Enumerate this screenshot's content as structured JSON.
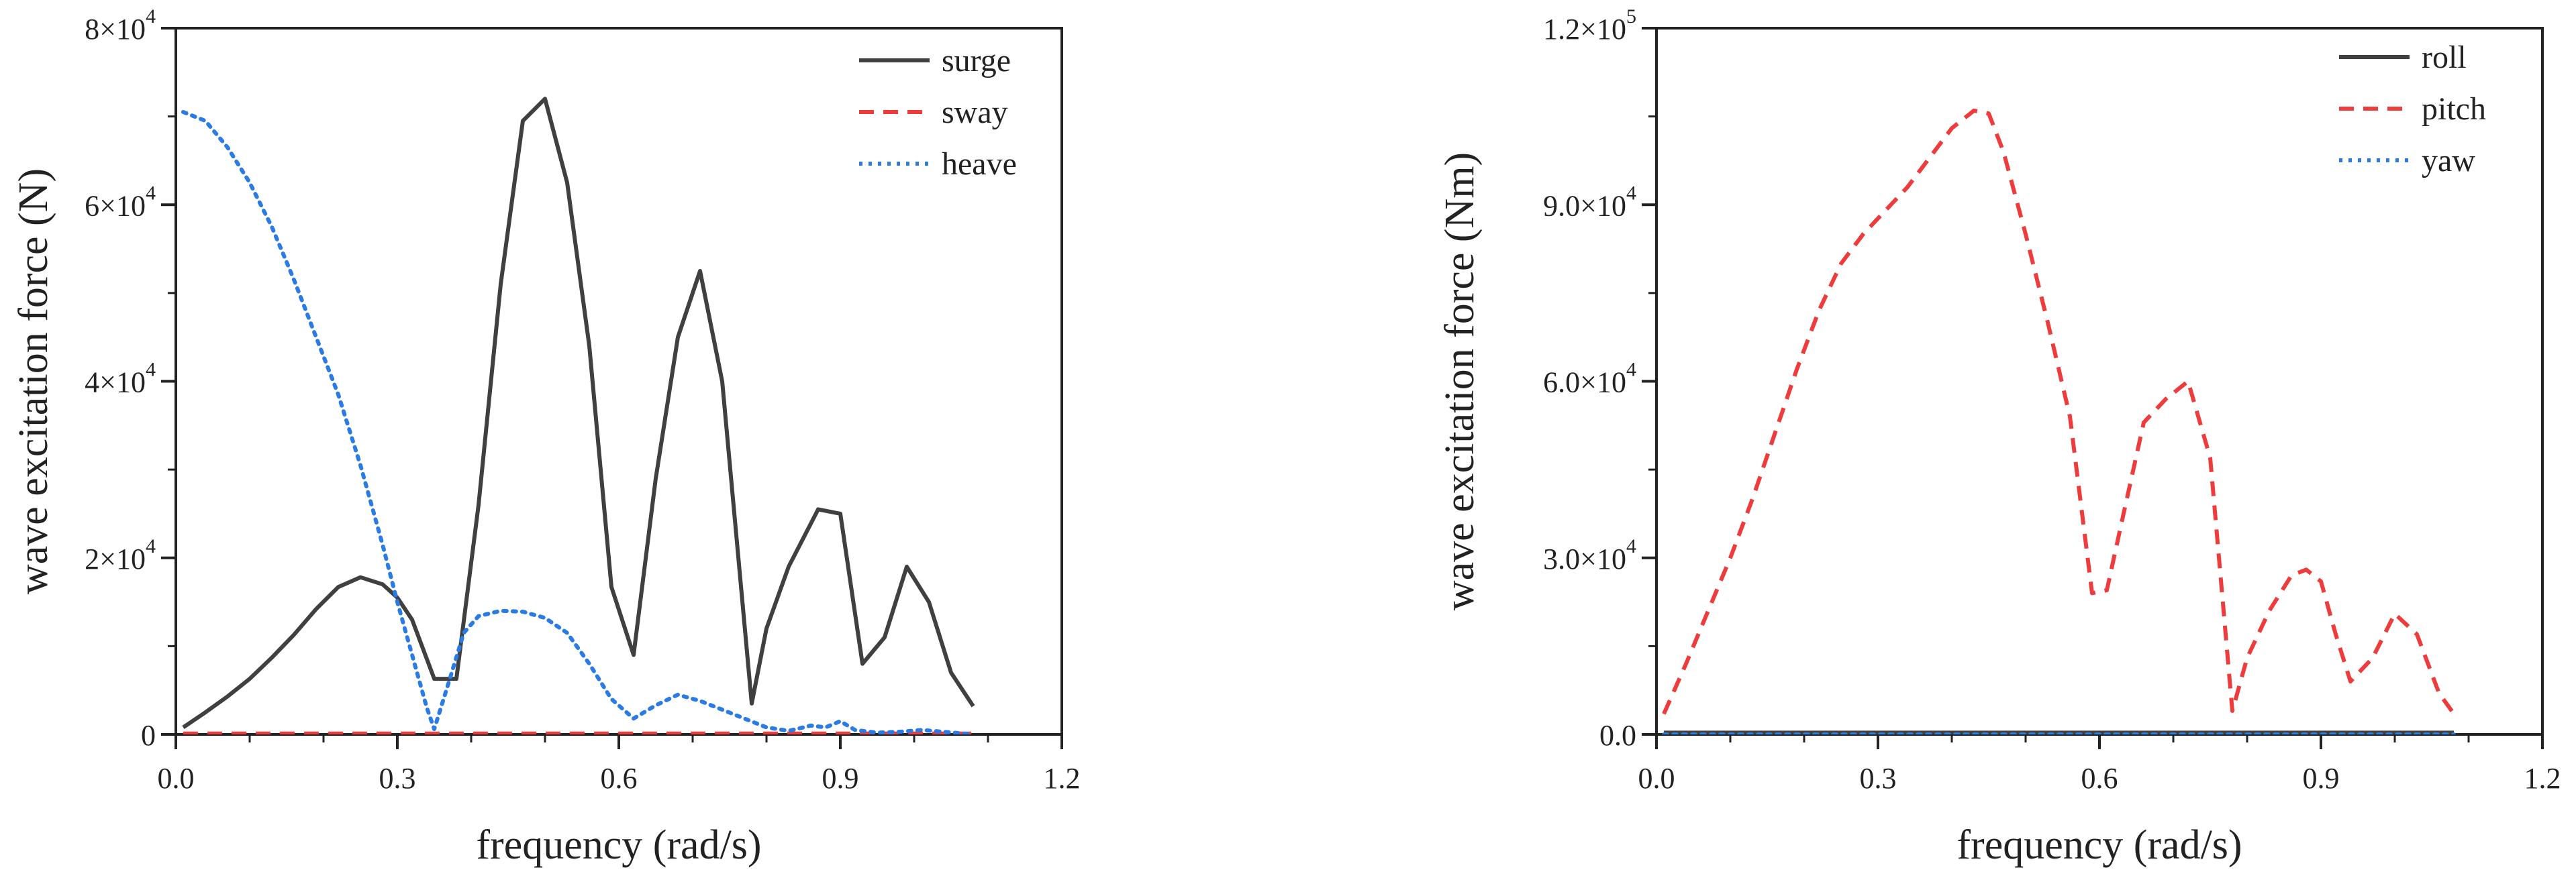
{
  "chart_data": [
    {
      "type": "line",
      "xlabel": "frequency (rad/s)",
      "ylabel": "wave excitation force (N)",
      "xlim": [
        0,
        1.2
      ],
      "ylim": [
        0,
        80000
      ],
      "xticks": [
        0,
        0.3,
        0.6,
        0.9,
        1.2
      ],
      "xtick_labels": [
        "0.0",
        "0.3",
        "0.6",
        "0.9",
        "1.2"
      ],
      "yticks": [
        0,
        20000,
        40000,
        60000,
        80000
      ],
      "ytick_labels": [
        {
          "m": "0",
          "e": ""
        },
        {
          "m": "2×10",
          "e": "4"
        },
        {
          "m": "4×10",
          "e": "4"
        },
        {
          "m": "6×10",
          "e": "4"
        },
        {
          "m": "8×10",
          "e": "4"
        }
      ],
      "legend_position": "top-right",
      "series": [
        {
          "name": "surge",
          "color": "#404040",
          "dash": "solid",
          "x": [
            0.01,
            0.04,
            0.07,
            0.1,
            0.13,
            0.16,
            0.19,
            0.22,
            0.25,
            0.28,
            0.3,
            0.32,
            0.35,
            0.38,
            0.41,
            0.44,
            0.47,
            0.5,
            0.53,
            0.56,
            0.59,
            0.62,
            0.65,
            0.68,
            0.71,
            0.74,
            0.78,
            0.8,
            0.83,
            0.87,
            0.9,
            0.93,
            0.96,
            0.99,
            1.02,
            1.05,
            1.08
          ],
          "y": [
            800,
            2500,
            4300,
            6300,
            8700,
            11300,
            14200,
            16700,
            17800,
            17000,
            15500,
            13000,
            6300,
            6300,
            26000,
            51000,
            69500,
            72000,
            62500,
            44000,
            16700,
            9000,
            29000,
            45000,
            52500,
            40000,
            3500,
            12000,
            19000,
            25500,
            25000,
            8000,
            11000,
            19000,
            15000,
            7000,
            3200
          ]
        },
        {
          "name": "sway",
          "color": "#ee3b3b",
          "dash": "dashed",
          "x": [
            0.01,
            1.08
          ],
          "y": [
            100,
            100
          ]
        },
        {
          "name": "heave",
          "color": "#2a7be4",
          "dash": "dotted",
          "x": [
            0.01,
            0.04,
            0.07,
            0.1,
            0.13,
            0.16,
            0.19,
            0.22,
            0.25,
            0.28,
            0.3,
            0.32,
            0.34,
            0.35,
            0.37,
            0.39,
            0.41,
            0.44,
            0.47,
            0.5,
            0.53,
            0.56,
            0.59,
            0.62,
            0.65,
            0.68,
            0.71,
            0.74,
            0.77,
            0.8,
            0.83,
            0.86,
            0.88,
            0.9,
            0.92,
            0.95,
            0.98,
            1.01,
            1.04,
            1.08
          ],
          "y": [
            70500,
            69500,
            66500,
            62500,
            57500,
            51500,
            45000,
            38500,
            30500,
            21500,
            15000,
            9000,
            3000,
            600,
            6000,
            11500,
            13400,
            14000,
            13900,
            13200,
            11500,
            8000,
            4000,
            1800,
            3300,
            4500,
            3800,
            2800,
            1800,
            800,
            400,
            1000,
            800,
            1500,
            500,
            200,
            300,
            500,
            300,
            0
          ]
        }
      ]
    },
    {
      "type": "line",
      "xlabel": "frequency (rad/s)",
      "ylabel": "wave excitation force (Nm)",
      "xlim": [
        0,
        1.2
      ],
      "ylim": [
        0,
        120000
      ],
      "xticks": [
        0,
        0.3,
        0.6,
        0.9,
        1.2
      ],
      "xtick_labels": [
        "0.0",
        "0.3",
        "0.6",
        "0.9",
        "1.2"
      ],
      "yticks": [
        0,
        30000,
        60000,
        90000,
        120000
      ],
      "ytick_labels": [
        {
          "m": "0.0",
          "e": ""
        },
        {
          "m": "3.0×10",
          "e": "4"
        },
        {
          "m": "6.0×10",
          "e": "4"
        },
        {
          "m": "9.0×10",
          "e": "4"
        },
        {
          "m": "1.2×10",
          "e": "5"
        }
      ],
      "legend_position": "top-right",
      "series": [
        {
          "name": "roll",
          "color": "#404040",
          "dash": "solid",
          "x": [
            0.01,
            1.08
          ],
          "y": [
            300,
            300
          ]
        },
        {
          "name": "pitch",
          "color": "#ee3b3b",
          "dash": "dashed",
          "x": [
            0.01,
            0.04,
            0.07,
            0.1,
            0.13,
            0.16,
            0.19,
            0.22,
            0.25,
            0.28,
            0.31,
            0.34,
            0.37,
            0.4,
            0.43,
            0.45,
            0.47,
            0.5,
            0.53,
            0.56,
            0.59,
            0.61,
            0.63,
            0.66,
            0.69,
            0.72,
            0.75,
            0.78,
            0.8,
            0.83,
            0.86,
            0.88,
            0.9,
            0.92,
            0.94,
            0.97,
            1.0,
            1.03,
            1.06,
            1.08
          ],
          "y": [
            3500,
            12000,
            21000,
            30000,
            40000,
            51000,
            62000,
            72000,
            80000,
            85000,
            89000,
            93000,
            98000,
            103000,
            106000,
            105500,
            99000,
            85000,
            70000,
            54000,
            24000,
            24500,
            36000,
            53000,
            57000,
            60000,
            47000,
            4000,
            13000,
            21000,
            27000,
            28000,
            26000,
            17000,
            9000,
            13000,
            20500,
            17000,
            7000,
            3500
          ]
        },
        {
          "name": "yaw",
          "color": "#2a7be4",
          "dash": "dotted",
          "x": [
            0.01,
            1.08
          ],
          "y": [
            0,
            0
          ]
        }
      ]
    }
  ]
}
